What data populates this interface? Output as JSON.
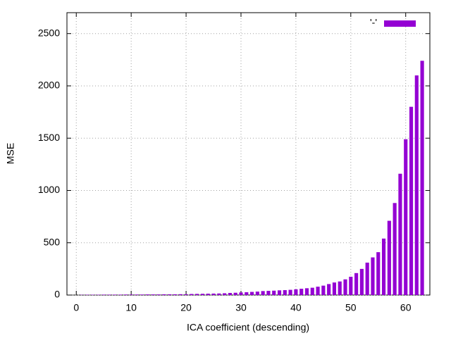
{
  "chart_data": {
    "type": "bar",
    "xlabel": "ICA coefficient (descending)",
    "ylabel": "MSE",
    "x": [
      1,
      2,
      3,
      4,
      5,
      6,
      7,
      8,
      9,
      10,
      11,
      12,
      13,
      14,
      15,
      16,
      17,
      18,
      19,
      20,
      21,
      22,
      23,
      24,
      25,
      26,
      27,
      28,
      29,
      30,
      31,
      32,
      33,
      34,
      35,
      36,
      37,
      38,
      39,
      40,
      41,
      42,
      43,
      44,
      45,
      46,
      47,
      48,
      49,
      50,
      51,
      52,
      53,
      54,
      55,
      56,
      57,
      58,
      59,
      60,
      61,
      62,
      63
    ],
    "series": [
      {
        "name": "'-'",
        "color": "#9400d3",
        "values": [
          2,
          3,
          3,
          3,
          4,
          4,
          4,
          4,
          5,
          5,
          5,
          5,
          6,
          6,
          6,
          7,
          7,
          7,
          8,
          8,
          10,
          11,
          12,
          13,
          14,
          15,
          17,
          20,
          22,
          25,
          27,
          30,
          33,
          38,
          40,
          42,
          45,
          47,
          50,
          55,
          60,
          65,
          70,
          80,
          90,
          105,
          120,
          130,
          150,
          175,
          210,
          250,
          310,
          360,
          410,
          540,
          710,
          880,
          1160,
          1490,
          1800,
          2100,
          2240
        ]
      }
    ],
    "xlim": [
      -1.7,
      64.4
    ],
    "xticks": [
      0,
      10,
      20,
      30,
      40,
      50,
      60
    ],
    "ylim": [
      0,
      2700
    ],
    "yticks": [
      0,
      500,
      1000,
      1500,
      2000,
      2500
    ],
    "grid": true,
    "legend": "top-right"
  }
}
